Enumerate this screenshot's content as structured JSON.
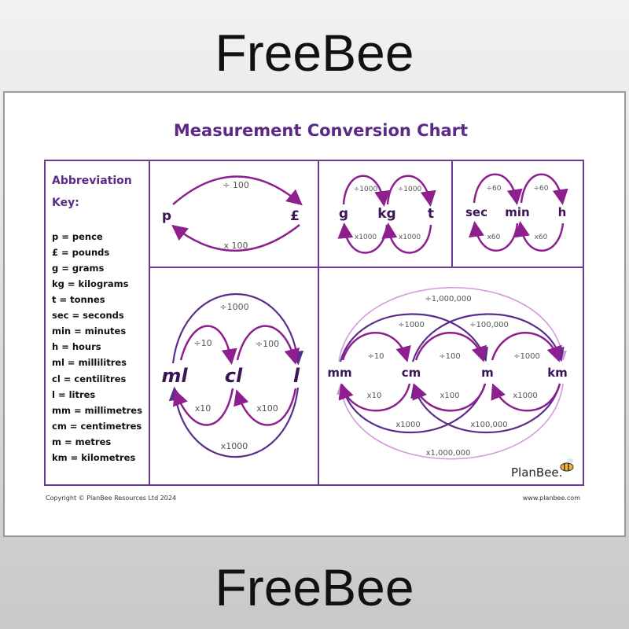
{
  "banner": {
    "top": "FreeBee",
    "bottom": "FreeBee"
  },
  "title": "Measurement Conversion Chart",
  "key": {
    "heading1": "Abbreviation",
    "heading2": "Key:",
    "items": [
      "p = pence",
      "£ = pounds",
      "g = grams",
      "kg = kilograms",
      "t = tonnes",
      "sec = seconds",
      "min = minutes",
      "h = hours",
      "ml = millilitres",
      "cl = centilitres",
      "l = litres",
      "mm = millimetres",
      "cm = centimetres",
      "m = metres",
      "km = kilometres"
    ]
  },
  "money": {
    "units": [
      "p",
      "£"
    ],
    "div": "÷ 100",
    "mul": "x 100"
  },
  "mass": {
    "units": [
      "g",
      "kg",
      "t"
    ],
    "div": [
      "÷1000",
      "÷1000"
    ],
    "mul": [
      "x1000",
      "x1000"
    ]
  },
  "time": {
    "units": [
      "sec",
      "min",
      "h"
    ],
    "div": [
      "÷60",
      "÷60"
    ],
    "mul": [
      "x60",
      "x60"
    ]
  },
  "volume": {
    "units": [
      "ml",
      "cl",
      "l"
    ],
    "div": [
      "÷10",
      "÷100",
      "÷1000"
    ],
    "mul": [
      "x10",
      "x100",
      "x1000"
    ]
  },
  "length": {
    "units": [
      "mm",
      "cm",
      "m",
      "km"
    ],
    "div": [
      "÷10",
      "÷100",
      "÷1000",
      "÷1000",
      "÷100,000",
      "÷1,000,000"
    ],
    "mul": [
      "x10",
      "x100",
      "x1000",
      "x1000",
      "x100,000",
      "x1,000,000"
    ]
  },
  "logo": "PlanBee.",
  "footer": {
    "copyright": "Copyright © PlanBee Resources Ltd 2024",
    "url": "www.planbee.com"
  },
  "colors": {
    "title": "#5b2a86",
    "frame": "#6a3a96",
    "arrow_magenta": "#8e1f8e",
    "arrow_dark": "#5a2d8c",
    "arrow_light": "#d49ad8"
  }
}
